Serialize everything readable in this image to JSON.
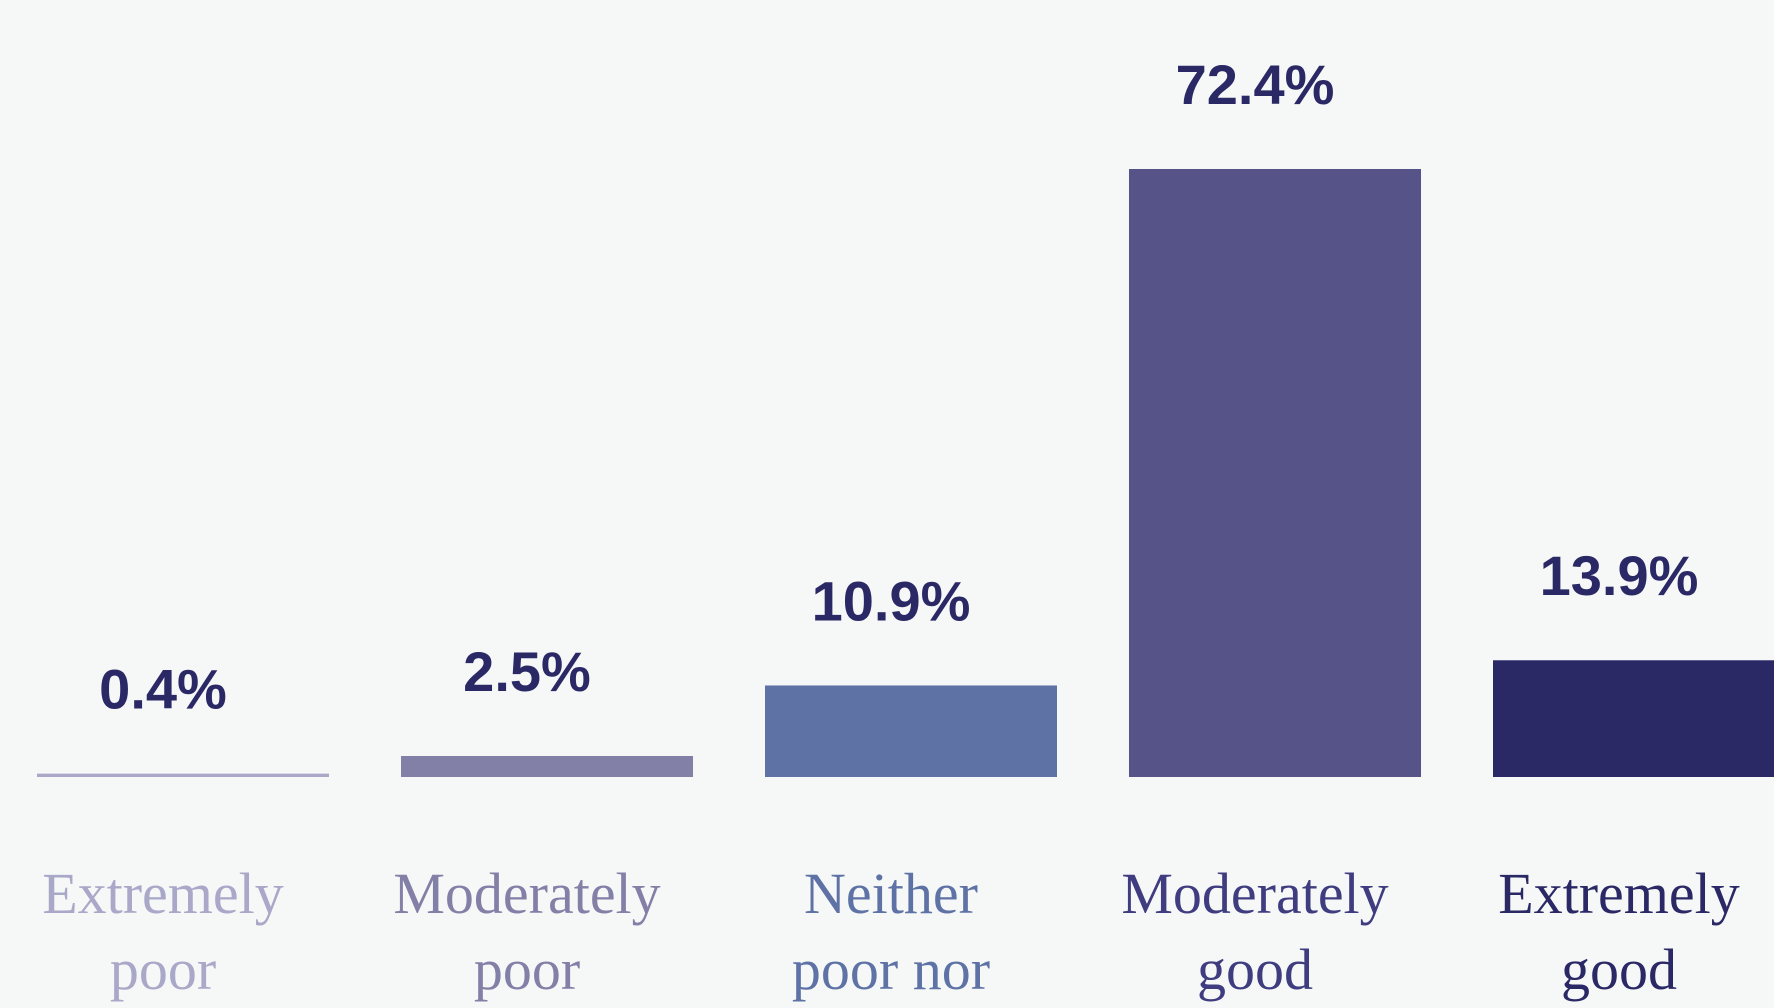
{
  "chart_data": {
    "type": "bar",
    "categories": [
      "Extremely poor",
      "Moderately poor",
      "Neither poor nor",
      "Moderately good",
      "Extremely good"
    ],
    "values": [
      0.4,
      2.5,
      10.9,
      72.4,
      13.9
    ],
    "value_labels": [
      "0.4%",
      "2.5%",
      "10.9%",
      "72.4%",
      "13.9%"
    ],
    "colors": [
      "#a9a8c8",
      "#8380a8",
      "#5e72a6",
      "#565388",
      "#2b2866"
    ],
    "label_colors": [
      "#a9a8c8",
      "#8380a8",
      "#5e72a6",
      "#3f3c80",
      "#2b2866"
    ],
    "value_label_color": "#2b2866"
  }
}
